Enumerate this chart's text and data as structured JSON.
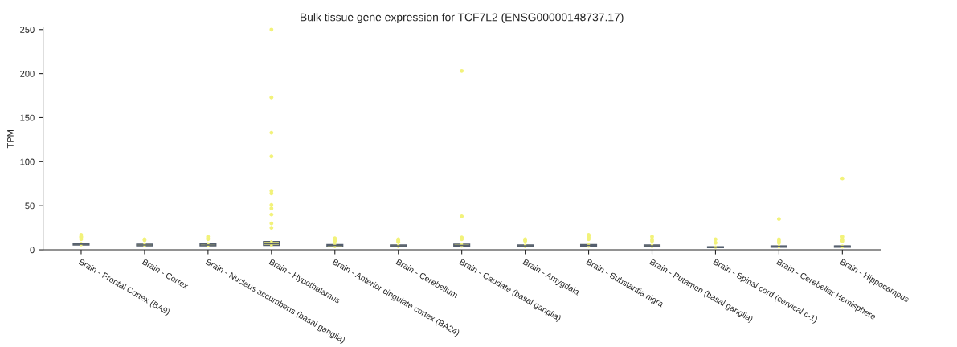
{
  "chart_data": {
    "type": "box",
    "title": "Bulk tissue gene expression for TCF7L2 (ENSG00000148737.17)",
    "ylabel": "TPM",
    "categories": [
      "Brain - Frontal Cortex (BA9)",
      "Brain - Cortex",
      "Brain - Nucleus accumbens (basal ganglia)",
      "Brain - Hypothalamus",
      "Brain - Anterior cingulate cortex (BA24)",
      "Brain - Cerebellum",
      "Brain - Caudate (basal ganglia)",
      "Brain - Amygdala",
      "Brain - Substantia nigra",
      "Brain - Putamen (basal ganglia)",
      "Brain - Spinal cord (cervical c-1)",
      "Brain - Cerebellar Hemisphere",
      "Brain - Hippocampus"
    ],
    "color": "#f2f27a",
    "boxes": [
      {
        "low": 5.5,
        "q1": 5.5,
        "median": 6.5,
        "q3": 7.5,
        "high": 7.5,
        "outliers": [
          12,
          14,
          15,
          17
        ]
      },
      {
        "low": 4.5,
        "q1": 4.5,
        "median": 5.5,
        "q3": 6.5,
        "high": 6.5,
        "outliers": [
          11,
          12
        ]
      },
      {
        "low": 4.5,
        "q1": 4.5,
        "median": 5.5,
        "q3": 7,
        "high": 7,
        "outliers": [
          12,
          13,
          15
        ]
      },
      {
        "low": 5,
        "q1": 5,
        "median": 7,
        "q3": 9.5,
        "high": 9.5,
        "outliers": [
          250,
          173,
          133,
          106,
          67,
          64,
          51,
          47,
          40,
          30,
          25
        ]
      },
      {
        "low": 3.5,
        "q1": 3.5,
        "median": 5,
        "q3": 6,
        "high": 6,
        "outliers": [
          10,
          11,
          12,
          13
        ]
      },
      {
        "low": 3.5,
        "q1": 3.5,
        "median": 4.5,
        "q3": 5.5,
        "high": 5.5,
        "outliers": [
          9,
          10,
          11,
          12
        ]
      },
      {
        "low": 4,
        "q1": 4,
        "median": 5,
        "q3": 6.5,
        "high": 6.5,
        "outliers": [
          203,
          38,
          14,
          12
        ]
      },
      {
        "low": 3.5,
        "q1": 3.5,
        "median": 4.5,
        "q3": 5.5,
        "high": 5.5,
        "outliers": [
          10,
          11,
          12
        ]
      },
      {
        "low": 4,
        "q1": 4,
        "median": 5,
        "q3": 6,
        "high": 6,
        "outliers": [
          12,
          14,
          16,
          17
        ]
      },
      {
        "low": 3.5,
        "q1": 3.5,
        "median": 4.5,
        "q3": 5.5,
        "high": 5.5,
        "outliers": [
          10,
          12,
          15
        ]
      },
      {
        "low": 2.5,
        "q1": 2.5,
        "median": 3,
        "q3": 3.5,
        "high": 3.5,
        "outliers": [
          8,
          12
        ]
      },
      {
        "low": 3,
        "q1": 3,
        "median": 4,
        "q3": 4.5,
        "high": 4.5,
        "outliers": [
          35,
          12,
          10,
          8
        ]
      },
      {
        "low": 3,
        "q1": 3,
        "median": 4,
        "q3": 4.5,
        "high": 4.5,
        "outliers": [
          81,
          15,
          12,
          10
        ]
      }
    ],
    "ylim": [
      0,
      252
    ],
    "yticks": [
      0,
      50,
      100,
      150,
      200,
      250
    ],
    "grid": false
  }
}
